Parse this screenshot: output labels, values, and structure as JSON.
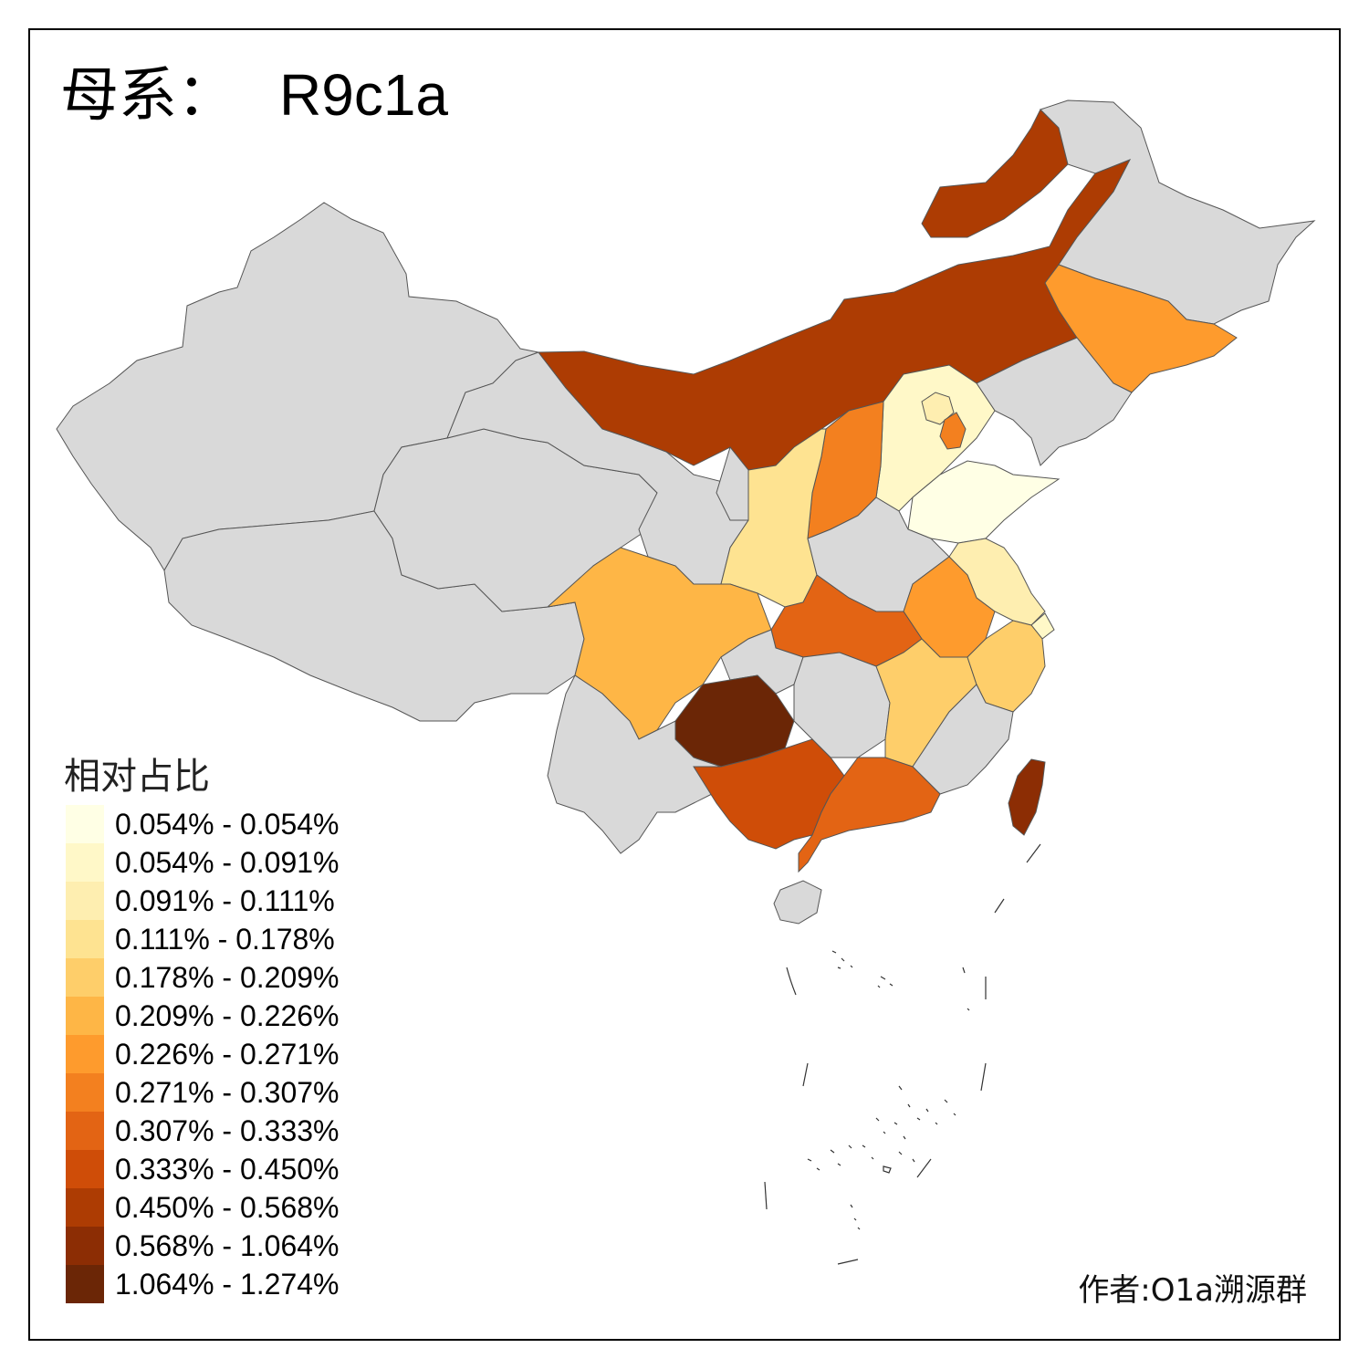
{
  "title": {
    "prefix": "母系：",
    "code": "R9c1a"
  },
  "legend": {
    "title": "相对占比",
    "items": [
      {
        "label": "0.054% - 0.054%",
        "color": "#ffffe5"
      },
      {
        "label": "0.054% - 0.091%",
        "color": "#fff8c8"
      },
      {
        "label": "0.091% - 0.111%",
        "color": "#feeeb0"
      },
      {
        "label": "0.111% - 0.178%",
        "color": "#fee391"
      },
      {
        "label": "0.178% - 0.209%",
        "color": "#fece6a"
      },
      {
        "label": "0.209% - 0.226%",
        "color": "#feb646"
      },
      {
        "label": "0.226% - 0.271%",
        "color": "#fe9b2d"
      },
      {
        "label": "0.271% - 0.307%",
        "color": "#f3801f"
      },
      {
        "label": "0.307% - 0.333%",
        "color": "#e36414"
      },
      {
        "label": "0.333% - 0.450%",
        "color": "#cf4d08"
      },
      {
        "label": "0.450% - 0.568%",
        "color": "#ad3c03"
      },
      {
        "label": "0.568% - 1.064%",
        "color": "#8c2d04"
      },
      {
        "label": "1.064% - 1.274%",
        "color": "#6b2606"
      }
    ]
  },
  "author": "作者:O1a溯源群",
  "no_data_color": "#d9d9d9",
  "regions": [
    {
      "id": "xinjiang",
      "class_index": null
    },
    {
      "id": "tibet",
      "class_index": null
    },
    {
      "id": "qinghai",
      "class_index": null
    },
    {
      "id": "gansu",
      "class_index": null
    },
    {
      "id": "inner-mongolia",
      "class_index": 10
    },
    {
      "id": "heilongjiang",
      "class_index": null
    },
    {
      "id": "jilin",
      "class_index": 6
    },
    {
      "id": "liaoning",
      "class_index": null
    },
    {
      "id": "hebei",
      "class_index": 1
    },
    {
      "id": "beijing",
      "class_index": 2
    },
    {
      "id": "tianjin",
      "class_index": 7
    },
    {
      "id": "shanxi",
      "class_index": 7
    },
    {
      "id": "shaanxi",
      "class_index": 3
    },
    {
      "id": "ningxia",
      "class_index": null
    },
    {
      "id": "shandong",
      "class_index": 0
    },
    {
      "id": "henan",
      "class_index": null
    },
    {
      "id": "jiangsu",
      "class_index": 2
    },
    {
      "id": "shanghai",
      "class_index": 1
    },
    {
      "id": "anhui",
      "class_index": 6
    },
    {
      "id": "hubei",
      "class_index": 8
    },
    {
      "id": "sichuan",
      "class_index": 5
    },
    {
      "id": "chongqing",
      "class_index": null
    },
    {
      "id": "guizhou",
      "class_index": 12
    },
    {
      "id": "hunan",
      "class_index": null
    },
    {
      "id": "jiangxi",
      "class_index": 4
    },
    {
      "id": "zhejiang",
      "class_index": 4
    },
    {
      "id": "fujian",
      "class_index": null
    },
    {
      "id": "yunnan",
      "class_index": null
    },
    {
      "id": "guangxi",
      "class_index": 9
    },
    {
      "id": "guangdong",
      "class_index": 8
    },
    {
      "id": "hainan",
      "class_index": null
    },
    {
      "id": "taiwan",
      "class_index": 11
    }
  ]
}
